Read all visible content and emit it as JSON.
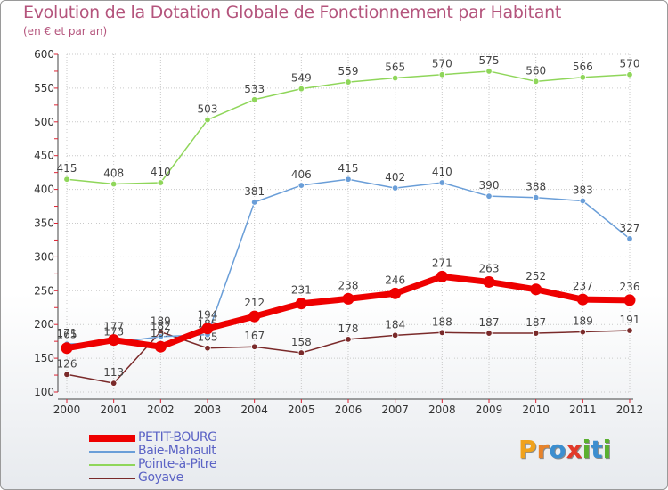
{
  "title": "Evolution de la Dotation Globale de Fonctionnement par Habitant",
  "subtitle": "(en € et par an)",
  "logo": {
    "letters": [
      "P",
      "r",
      "o",
      "x",
      "i",
      "t",
      "i"
    ],
    "colors": [
      "#f0a21c",
      "#e8832a",
      "#3c8ecf",
      "#e23a2a",
      "#5ab030",
      "#3c8ecf",
      "#5ab030"
    ]
  },
  "chart_data": {
    "type": "line",
    "title": "Evolution de la Dotation Globale de Fonctionnement par Habitant",
    "subtitle": "(en € et par an)",
    "xlabel": "",
    "ylabel": "",
    "x": [
      "2000",
      "2001",
      "2002",
      "2003",
      "2004",
      "2005",
      "2006",
      "2007",
      "2008",
      "2009",
      "2010",
      "2011",
      "2012"
    ],
    "ylim": [
      100,
      600
    ],
    "yticks": [
      100,
      150,
      200,
      250,
      300,
      350,
      400,
      450,
      500,
      550,
      600
    ],
    "grid": true,
    "legend_position": "bottom-left",
    "series": [
      {
        "name": "Goyave",
        "color": "#7a2a2a",
        "values": [
          126,
          113,
          189,
          165,
          167,
          158,
          178,
          184,
          188,
          187,
          187,
          189,
          191
        ]
      },
      {
        "name": "Pointe-à-Pitre",
        "color": "#8fd65a",
        "values": [
          415,
          408,
          410,
          503,
          533,
          549,
          559,
          565,
          570,
          575,
          560,
          566,
          570
        ]
      },
      {
        "name": "Baie-Mahault",
        "color": "#6a9ed8",
        "values": [
          171,
          173,
          182,
          185,
          381,
          406,
          415,
          402,
          410,
          390,
          388,
          383,
          327
        ]
      },
      {
        "name": "PETIT-BOURG",
        "color": "#ee0000",
        "values": [
          165,
          177,
          167,
          194,
          212,
          231,
          238,
          246,
          271,
          263,
          252,
          237,
          236
        ]
      }
    ],
    "legend_order": [
      "PETIT-BOURG",
      "Baie-Mahault",
      "Pointe-à-Pitre",
      "Goyave"
    ]
  }
}
